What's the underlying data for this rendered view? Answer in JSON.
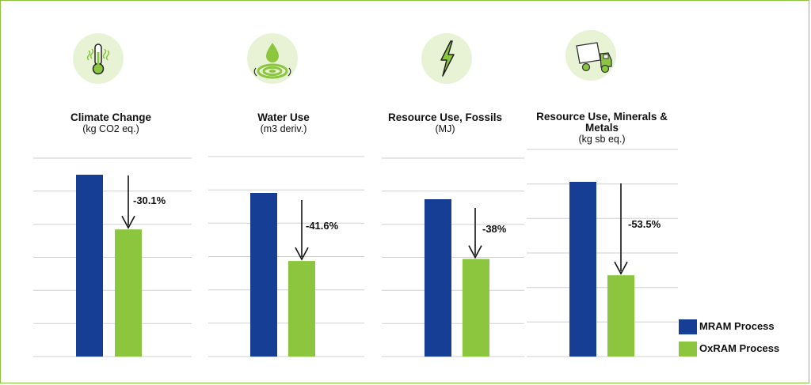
{
  "colors": {
    "mram": "#163e94",
    "oxram": "#8cc63f",
    "grid": "#d0d0d0",
    "icon_bg": "#e8f3d6",
    "frame": "#8cc63f"
  },
  "icons": [
    "thermometer-icon",
    "water-drop-icon",
    "lightning-bolt-icon",
    "dump-truck-icon"
  ],
  "legend": [
    {
      "label": "MRAM Process",
      "color": "#163e94"
    },
    {
      "label": "OxRAM Process",
      "color": "#8cc63f"
    }
  ],
  "chart_data": [
    {
      "type": "bar",
      "title": "Climate Change",
      "unit": "(kg CO2 eq.)",
      "categories": [
        "MRAM Process",
        "OxRAM Process"
      ],
      "values": [
        100,
        69.9
      ],
      "change_label": "-30.1%",
      "grid": true
    },
    {
      "type": "bar",
      "title": "Water Use",
      "unit": "(m3 deriv.)",
      "categories": [
        "MRAM Process",
        "OxRAM Process"
      ],
      "values": [
        100,
        58.4
      ],
      "change_label": "-41.6%",
      "grid": true
    },
    {
      "type": "bar",
      "title": "Resource Use, Fossils",
      "unit": "(MJ)",
      "categories": [
        "MRAM Process",
        "OxRAM Process"
      ],
      "values": [
        100,
        62
      ],
      "change_label": "-38%",
      "grid": true
    },
    {
      "type": "bar",
      "title": "Resource Use, Minerals & Metals",
      "unit": "(kg sb eq.)",
      "categories": [
        "MRAM Process",
        "OxRAM Process"
      ],
      "values": [
        100,
        46.5
      ],
      "change_label": "-53.5%",
      "grid": true
    }
  ]
}
